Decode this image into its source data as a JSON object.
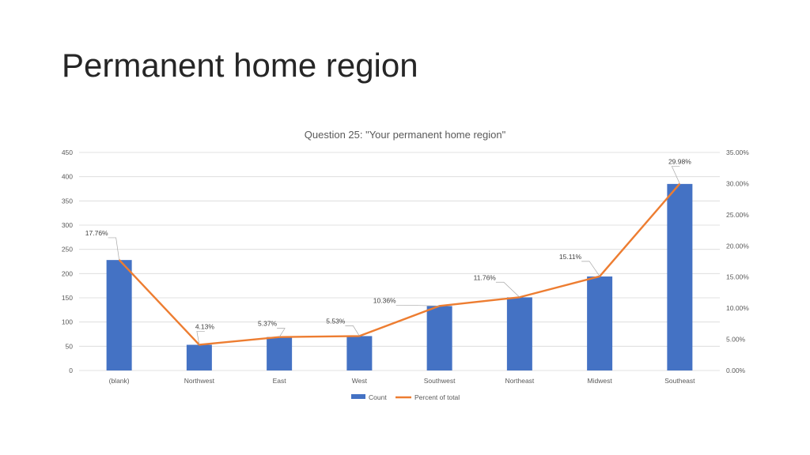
{
  "slide": {
    "title": "Permanent home region"
  },
  "chart_data": {
    "type": "bar",
    "title": "Question 25: \"Your permanent home region\"",
    "categories": [
      "(blank)",
      "Northwest",
      "East",
      "West",
      "Southwest",
      "Northeast",
      "Midwest",
      "Southeast"
    ],
    "series": [
      {
        "name": "Count",
        "type": "bar",
        "axis": "left",
        "color": "#4472C4",
        "values": [
          228,
          53,
          69,
          71,
          133,
          151,
          194,
          385
        ]
      },
      {
        "name": "Percent of total",
        "type": "line",
        "axis": "right",
        "color": "#ED7D31",
        "values": [
          17.76,
          4.13,
          5.37,
          5.53,
          10.36,
          11.76,
          15.11,
          29.98
        ],
        "data_labels": [
          "17.76%",
          "4.13%",
          "5.37%",
          "5.53%",
          "10.36%",
          "11.76%",
          "15.11%",
          "29.98%"
        ]
      }
    ],
    "y_left": {
      "min": 0,
      "max": 450,
      "step": 50,
      "tick_labels": [
        "0",
        "50",
        "100",
        "150",
        "200",
        "250",
        "300",
        "350",
        "400",
        "450"
      ]
    },
    "y_right": {
      "min": 0,
      "max": 35,
      "step": 5,
      "tick_labels": [
        "0.00%",
        "5.00%",
        "10.00%",
        "15.00%",
        "20.00%",
        "25.00%",
        "30.00%",
        "35.00%"
      ]
    },
    "grid": true,
    "legend": "bottom-center"
  }
}
